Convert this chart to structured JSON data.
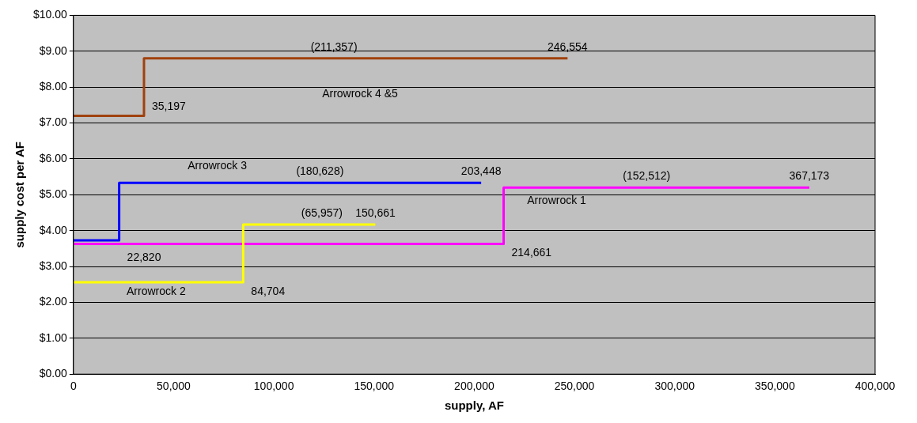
{
  "chart_data": {
    "type": "step",
    "xlabel": "supply, AF",
    "ylabel": "supply cost per AF",
    "xlim": [
      0,
      400000
    ],
    "ylim": [
      0,
      10
    ],
    "xticks": [
      {
        "value": 0,
        "label": "0"
      },
      {
        "value": 50000,
        "label": "50,000"
      },
      {
        "value": 100000,
        "label": "100,000"
      },
      {
        "value": 150000,
        "label": "150,000"
      },
      {
        "value": 200000,
        "label": "200,000"
      },
      {
        "value": 250000,
        "label": "250,000"
      },
      {
        "value": 300000,
        "label": "300,000"
      },
      {
        "value": 350000,
        "label": "350,000"
      },
      {
        "value": 400000,
        "label": "400,000"
      }
    ],
    "yticks": [
      {
        "value": 0,
        "label": "$0.00"
      },
      {
        "value": 1,
        "label": "$1.00"
      },
      {
        "value": 2,
        "label": "$2.00"
      },
      {
        "value": 3,
        "label": "$3.00"
      },
      {
        "value": 4,
        "label": "$4.00"
      },
      {
        "value": 5,
        "label": "$5.00"
      },
      {
        "value": 6,
        "label": "$6.00"
      },
      {
        "value": 7,
        "label": "$7.00"
      },
      {
        "value": 8,
        "label": "$8.00"
      },
      {
        "value": 9,
        "label": "$9.00"
      },
      {
        "value": 10,
        "label": "$10.00"
      }
    ],
    "grid": "y",
    "legend": false,
    "series": [
      {
        "name": "Arrowrock 4 &5",
        "color": "#a0410d",
        "x": [
          0,
          35197,
          246554
        ],
        "values": [
          7.2,
          8.8,
          8.8
        ]
      },
      {
        "name": "Arrowrock 3",
        "color": "#0000ff",
        "x": [
          0,
          22820,
          203448
        ],
        "values": [
          3.73,
          5.33,
          5.33
        ]
      },
      {
        "name": "Arrowrock 2",
        "color": "#ffff00",
        "x": [
          0,
          84704,
          150661
        ],
        "values": [
          2.56,
          4.17,
          4.17
        ]
      },
      {
        "name": "Arrowrock 1",
        "color": "#ff00ff",
        "x": [
          0,
          214661,
          367173
        ],
        "values": [
          3.63,
          5.2,
          5.2
        ]
      }
    ],
    "annotations": [
      {
        "text": "35,197",
        "x": 35197,
        "y": 7.2
      },
      {
        "text": "(211,357)",
        "x": 130000,
        "y": 8.8
      },
      {
        "text": "246,554",
        "x": 246554,
        "y": 8.8
      },
      {
        "text": "(180,628)",
        "x": 123000,
        "y": 5.33
      },
      {
        "text": "203,448",
        "x": 203448,
        "y": 5.33
      },
      {
        "text": "22,820",
        "x": 22820,
        "y": 3.73
      },
      {
        "text": "(65,957)",
        "x": 124000,
        "y": 4.17
      },
      {
        "text": "150,661",
        "x": 150661,
        "y": 4.17
      },
      {
        "text": "84,704",
        "x": 84704,
        "y": 2.56
      },
      {
        "text": "(152,512)",
        "x": 286000,
        "y": 5.2
      },
      {
        "text": "367,173",
        "x": 367173,
        "y": 5.2
      },
      {
        "text": "214,661",
        "x": 214661,
        "y": 3.63
      }
    ]
  }
}
